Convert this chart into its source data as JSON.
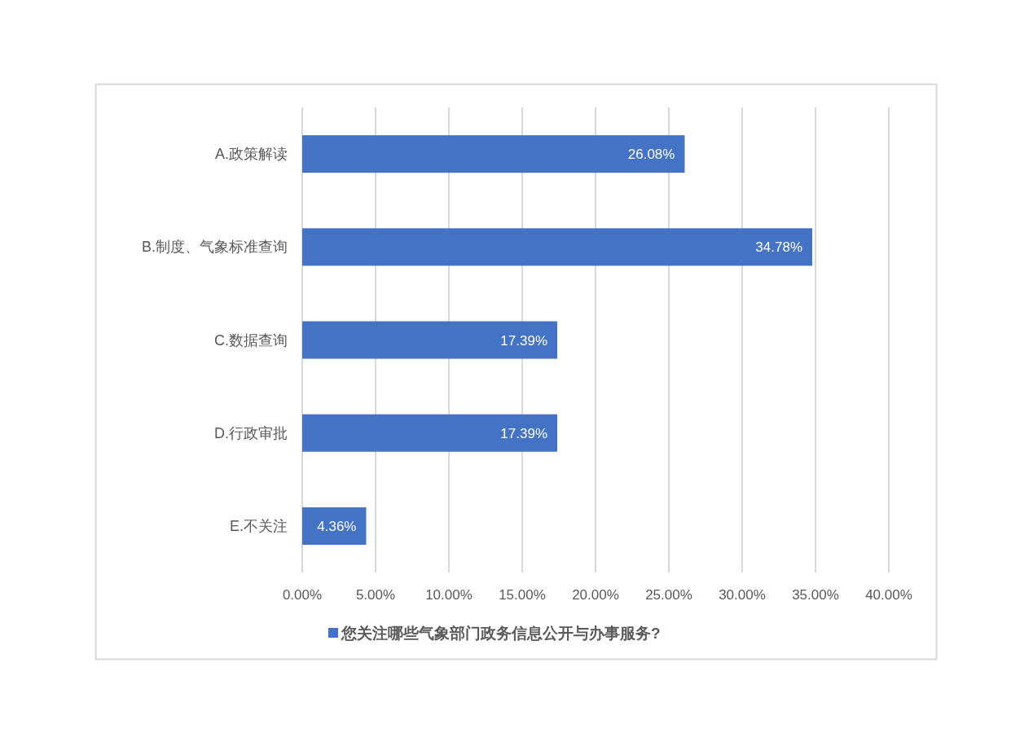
{
  "chart_data": {
    "type": "bar",
    "orientation": "horizontal",
    "categories": [
      "A.政策解读",
      "B.制度、气象标准查询",
      "C.数据查询",
      "D.行政审批",
      "E.不关注"
    ],
    "series": [
      {
        "name": "您关注哪些气象部门政务信息公开与办事服务?",
        "color": "#4472c4",
        "values": [
          26.08,
          34.78,
          17.39,
          17.39,
          4.36
        ],
        "value_labels": [
          "26.08%",
          "34.78%",
          "17.39%",
          "17.39%",
          "4.36%"
        ]
      }
    ],
    "xlim": [
      0,
      40
    ],
    "xticks": [
      {
        "value": 0,
        "label": "0.00%"
      },
      {
        "value": 5,
        "label": "5.00%"
      },
      {
        "value": 10,
        "label": "10.00%"
      },
      {
        "value": 15,
        "label": "15.00%"
      },
      {
        "value": 20,
        "label": "20.00%"
      },
      {
        "value": 25,
        "label": "25.00%"
      },
      {
        "value": 30,
        "label": "30.00%"
      },
      {
        "value": 35,
        "label": "35.00%"
      },
      {
        "value": 40,
        "label": "40.00%"
      }
    ],
    "grid": "x",
    "legend": "bottom"
  }
}
